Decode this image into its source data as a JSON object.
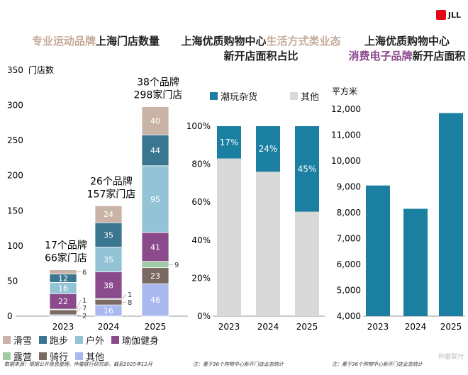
{
  "logo": "JLL",
  "titles": {
    "c1": {
      "a": "专业运动品牌",
      "b": "上海门店数量"
    },
    "c2": {
      "a": "上海优质购物中心",
      "b": "生活方式类业态",
      "c": "新开店面积占比"
    },
    "c3": {
      "a": "上海优质购物中心",
      "b": "消费电子品牌",
      "c": "新开店面积"
    }
  },
  "chart_data": [
    {
      "type": "bar",
      "stacked": true,
      "ylabel": "门店数",
      "ylim": [
        0,
        350
      ],
      "yticks": [
        0,
        50,
        100,
        150,
        200,
        250,
        300,
        350
      ],
      "categories": [
        "2023",
        "2024",
        "2025"
      ],
      "series": [
        {
          "name": "其他",
          "color": "#a9b8ef",
          "values": [
            2,
            16,
            46
          ]
        },
        {
          "name": "骑行",
          "color": "#7a6a62",
          "values": [
            7,
            8,
            23
          ]
        },
        {
          "name": "露营",
          "color": "#9fcba5",
          "values": [
            1,
            1,
            9
          ]
        },
        {
          "name": "瑜伽健身",
          "color": "#8b4a8c",
          "values": [
            22,
            38,
            41
          ]
        },
        {
          "name": "户外",
          "color": "#93c4d6",
          "values": [
            16,
            35,
            95
          ]
        },
        {
          "name": "跑步",
          "color": "#3a7690",
          "values": [
            12,
            35,
            44
          ]
        },
        {
          "name": "滑雪",
          "color": "#c9b3a6",
          "values": [
            6,
            24,
            40
          ]
        }
      ],
      "annotations": [
        [
          "17个品牌",
          "66家门店"
        ],
        [
          "26个品牌",
          "157家门店"
        ],
        [
          "38个品牌",
          "298家门店"
        ]
      ],
      "legend_order": [
        "滑雪",
        "跑步",
        "户外",
        "瑜伽健身",
        "露营",
        "骑行",
        "其他"
      ]
    },
    {
      "type": "bar",
      "stacked": true,
      "ylim": [
        0,
        100
      ],
      "yticks": [
        "0%",
        "20%",
        "40%",
        "60%",
        "80%",
        "100%"
      ],
      "categories": [
        "2023",
        "2024",
        "2025"
      ],
      "series": [
        {
          "name": "其他",
          "color": "#d9d9d9",
          "values": [
            83,
            76,
            55
          ]
        },
        {
          "name": "潮玩杂货",
          "color": "#1a7fa0",
          "values": [
            17,
            24,
            45
          ],
          "labels": [
            "17%",
            "24%",
            "45%"
          ]
        }
      ]
    },
    {
      "type": "bar",
      "ylabel": "平方米",
      "ylim": [
        4000,
        12000
      ],
      "yticks": [
        "4,000",
        "5,000",
        "6,000",
        "7,000",
        "8,000",
        "9,000",
        "10,000",
        "11,000",
        "12,000"
      ],
      "categories": [
        "2023",
        "2024",
        "2025"
      ],
      "color": "#1a7fa0",
      "values": [
        9050,
        8150,
        11850
      ]
    }
  ],
  "notes": [
    "数据来源：根据公开信息整理，仲量联行研究部，截至2025年12月",
    "注：基于36个购物中心新开门店业态统计",
    "注：基于36个购物中心新开门店业态统计"
  ],
  "watermark": "仲量联行"
}
